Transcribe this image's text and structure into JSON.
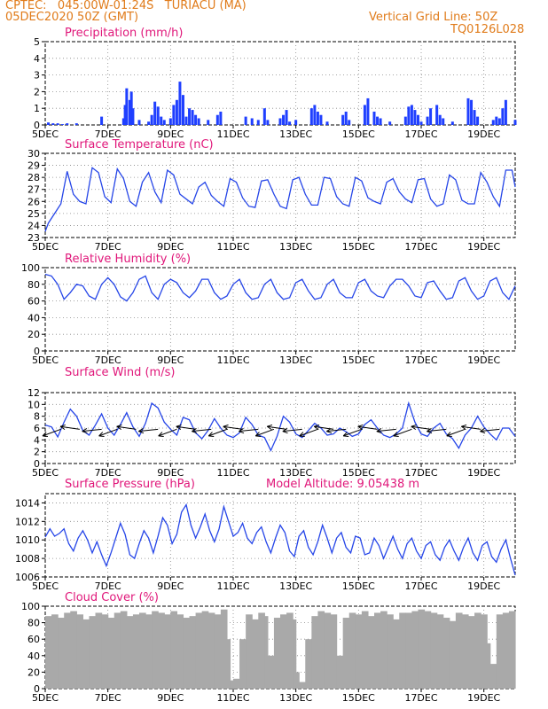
{
  "header": {
    "line1": "CPTEC:   045:00W-01:24S   TURIACU (MA)",
    "line2": "05DEC2020 50Z (GMT)",
    "grid_note": "Vertical Grid Line: 50Z",
    "run_id": "TQ0126L028"
  },
  "x_ticks": [
    {
      "day": 0,
      "label": "5DEC"
    },
    {
      "day": 2,
      "label": "7DEC"
    },
    {
      "day": 4,
      "label": "9DEC"
    },
    {
      "day": 6,
      "label": "11DEC"
    },
    {
      "day": 8,
      "label": "13DEC"
    },
    {
      "day": 10,
      "label": "15DEC"
    },
    {
      "day": 12,
      "label": "17DEC"
    },
    {
      "day": 14,
      "label": "19DEC"
    }
  ],
  "x_range": [
    0,
    15
  ],
  "chart_data": [
    {
      "type": "bar",
      "title": "Precipitation (mm/h)",
      "ylim": [
        0,
        5
      ],
      "yticks": [
        0,
        1,
        2,
        3,
        4,
        5
      ],
      "color": "#1f3fff",
      "x": [
        0.1,
        0.25,
        0.4,
        0.55,
        0.7,
        1.0,
        1.8,
        2.5,
        2.55,
        2.6,
        2.7,
        2.75,
        2.8,
        3.0,
        3.3,
        3.4,
        3.5,
        3.6,
        3.7,
        3.8,
        4.0,
        4.1,
        4.2,
        4.3,
        4.4,
        4.5,
        4.6,
        4.7,
        4.8,
        4.9,
        5.2,
        5.5,
        5.6,
        6.4,
        6.6,
        6.8,
        7.0,
        7.1,
        7.5,
        7.6,
        7.7,
        7.8,
        8.0,
        8.5,
        8.6,
        8.7,
        8.8,
        9.0,
        9.5,
        9.6,
        9.7,
        10.2,
        10.3,
        10.5,
        10.6,
        10.7,
        11.0,
        11.5,
        11.6,
        11.7,
        11.8,
        11.9,
        12.0,
        12.2,
        12.3,
        12.5,
        12.6,
        12.7,
        13.0,
        13.5,
        13.6,
        13.7,
        13.8,
        14.3,
        14.4,
        14.5,
        14.6,
        14.7,
        15.0
      ],
      "values": [
        0.15,
        0.1,
        0.1,
        0.05,
        0.1,
        0.1,
        0.5,
        0.4,
        1.2,
        2.2,
        1.5,
        2.0,
        1.0,
        0.3,
        0.2,
        0.6,
        1.4,
        1.1,
        0.5,
        0.3,
        0.4,
        1.2,
        1.5,
        2.6,
        1.8,
        0.5,
        1.0,
        0.9,
        0.6,
        0.4,
        0.3,
        0.6,
        0.8,
        0.5,
        0.4,
        0.3,
        1.0,
        0.3,
        0.4,
        0.6,
        0.9,
        0.2,
        0.3,
        1.0,
        1.2,
        0.8,
        0.6,
        0.2,
        0.6,
        0.8,
        0.3,
        1.2,
        1.6,
        0.8,
        0.5,
        0.4,
        0.2,
        0.5,
        1.1,
        1.2,
        0.9,
        0.6,
        0.2,
        0.5,
        1.0,
        1.2,
        0.6,
        0.4,
        0.2,
        1.6,
        1.5,
        0.9,
        0.5,
        0.3,
        0.5,
        0.4,
        1.0,
        1.5,
        0.3
      ]
    },
    {
      "type": "line",
      "title": "Surface Temperature (nC)",
      "ylim": [
        23,
        30
      ],
      "yticks": [
        23,
        24,
        25,
        26,
        27,
        28,
        29,
        30
      ],
      "color": "#2646e8",
      "x": [
        0,
        0.1,
        0.3,
        0.5,
        0.7,
        0.9,
        1.1,
        1.3,
        1.5,
        1.7,
        1.9,
        2.1,
        2.3,
        2.5,
        2.7,
        2.9,
        3.1,
        3.3,
        3.5,
        3.7,
        3.9,
        4.1,
        4.3,
        4.5,
        4.7,
        4.9,
        5.1,
        5.3,
        5.5,
        5.7,
        5.9,
        6.1,
        6.3,
        6.5,
        6.7,
        6.9,
        7.1,
        7.3,
        7.5,
        7.7,
        7.9,
        8.1,
        8.3,
        8.5,
        8.7,
        8.9,
        9.1,
        9.3,
        9.5,
        9.7,
        9.9,
        10.1,
        10.3,
        10.5,
        10.7,
        10.9,
        11.1,
        11.3,
        11.5,
        11.7,
        11.9,
        12.1,
        12.3,
        12.5,
        12.7,
        12.9,
        13.1,
        13.3,
        13.5,
        13.7,
        13.9,
        14.1,
        14.3,
        14.5,
        14.7,
        14.9,
        15.0
      ],
      "values": [
        23.5,
        24.2,
        25.0,
        25.8,
        28.5,
        26.6,
        26.0,
        25.8,
        28.8,
        28.4,
        26.4,
        25.9,
        28.7,
        27.9,
        26.0,
        25.6,
        27.6,
        28.4,
        26.8,
        25.9,
        28.6,
        28.2,
        26.6,
        26.2,
        25.8,
        27.2,
        27.6,
        26.5,
        26.0,
        25.6,
        27.9,
        27.6,
        26.3,
        25.6,
        25.5,
        27.7,
        27.8,
        26.6,
        25.6,
        25.4,
        27.8,
        28.0,
        26.6,
        25.7,
        25.7,
        28.0,
        27.9,
        26.4,
        25.8,
        25.6,
        28.0,
        27.7,
        26.3,
        26.0,
        25.8,
        27.6,
        27.9,
        26.8,
        26.2,
        25.9,
        27.8,
        27.9,
        26.2,
        25.6,
        25.8,
        28.2,
        27.8,
        26.1,
        25.8,
        25.8,
        28.4,
        27.6,
        26.4,
        25.6,
        28.6,
        28.6,
        27.2
      ]
    },
    {
      "type": "line",
      "title": "Relative Humidity (%)",
      "ylim": [
        0,
        100
      ],
      "yticks": [
        0,
        20,
        40,
        60,
        80,
        100
      ],
      "color": "#2646e8",
      "x": [
        0,
        0.2,
        0.4,
        0.6,
        0.8,
        1.0,
        1.2,
        1.4,
        1.6,
        1.8,
        2.0,
        2.2,
        2.4,
        2.6,
        2.8,
        3.0,
        3.2,
        3.4,
        3.6,
        3.8,
        4.0,
        4.2,
        4.4,
        4.6,
        4.8,
        5.0,
        5.2,
        5.4,
        5.6,
        5.8,
        6.0,
        6.2,
        6.4,
        6.6,
        6.8,
        7.0,
        7.2,
        7.4,
        7.6,
        7.8,
        8.0,
        8.2,
        8.4,
        8.6,
        8.8,
        9.0,
        9.2,
        9.4,
        9.6,
        9.8,
        10.0,
        10.2,
        10.4,
        10.6,
        10.8,
        11.0,
        11.2,
        11.4,
        11.6,
        11.8,
        12.0,
        12.2,
        12.4,
        12.6,
        12.8,
        13.0,
        13.2,
        13.4,
        13.6,
        13.8,
        14.0,
        14.2,
        14.4,
        14.6,
        14.8,
        15.0
      ],
      "values": [
        92,
        90,
        80,
        62,
        70,
        80,
        78,
        66,
        62,
        80,
        88,
        80,
        65,
        60,
        70,
        86,
        90,
        70,
        62,
        80,
        86,
        82,
        70,
        64,
        72,
        86,
        86,
        70,
        62,
        66,
        80,
        86,
        70,
        62,
        64,
        80,
        86,
        70,
        62,
        64,
        82,
        86,
        72,
        62,
        64,
        80,
        86,
        70,
        64,
        64,
        82,
        86,
        72,
        66,
        64,
        78,
        86,
        86,
        78,
        66,
        64,
        82,
        84,
        72,
        62,
        64,
        84,
        88,
        72,
        62,
        66,
        84,
        88,
        70,
        62,
        78
      ]
    },
    {
      "type": "line",
      "title": "Surface Wind (m/s)",
      "ylim": [
        0,
        12
      ],
      "yticks": [
        0,
        2,
        4,
        6,
        8,
        10,
        12
      ],
      "color": "#2646e8",
      "x": [
        0,
        0.2,
        0.4,
        0.6,
        0.8,
        1.0,
        1.2,
        1.4,
        1.6,
        1.8,
        2.0,
        2.2,
        2.4,
        2.6,
        2.8,
        3.0,
        3.2,
        3.4,
        3.6,
        3.8,
        4.0,
        4.2,
        4.4,
        4.6,
        4.8,
        5.0,
        5.2,
        5.4,
        5.6,
        5.8,
        6.0,
        6.2,
        6.4,
        6.6,
        6.8,
        7.0,
        7.2,
        7.4,
        7.6,
        7.8,
        8.0,
        8.2,
        8.4,
        8.6,
        8.8,
        9.0,
        9.2,
        9.4,
        9.6,
        9.8,
        10.0,
        10.2,
        10.4,
        10.6,
        10.8,
        11.0,
        11.2,
        11.4,
        11.6,
        11.8,
        12.0,
        12.2,
        12.4,
        12.6,
        12.8,
        13.0,
        13.2,
        13.4,
        13.6,
        13.8,
        14.0,
        14.2,
        14.4,
        14.6,
        14.8,
        15.0
      ],
      "values": [
        6.5,
        6.2,
        4.5,
        7.0,
        9.2,
        8.0,
        5.6,
        4.8,
        6.5,
        8.4,
        6.0,
        4.8,
        6.6,
        8.6,
        6.2,
        4.6,
        6.8,
        10.2,
        9.4,
        7.0,
        5.8,
        4.8,
        7.8,
        7.4,
        5.2,
        4.2,
        5.6,
        7.6,
        6.0,
        4.8,
        4.4,
        5.2,
        7.8,
        6.6,
        4.8,
        4.4,
        2.2,
        4.6,
        8.0,
        7.0,
        5.0,
        4.4,
        5.6,
        6.8,
        6.0,
        4.8,
        5.0,
        6.0,
        5.4,
        4.6,
        5.0,
        6.6,
        7.4,
        6.0,
        4.8,
        4.4,
        5.0,
        6.0,
        10.2,
        7.0,
        5.0,
        4.6,
        6.0,
        6.8,
        5.0,
        4.2,
        2.6,
        4.8,
        6.0,
        8.0,
        6.2,
        5.0,
        4.0,
        6.0,
        6.0,
        4.6
      ]
    },
    {
      "type": "line",
      "title": "Surface Pressure (hPa)",
      "annotation": "Model Altitude: 9.05438 m",
      "ylim": [
        1006,
        1015
      ],
      "yticks": [
        1006,
        1008,
        1010,
        1012,
        1014
      ],
      "color": "#2646e8",
      "x": [
        0,
        0.15,
        0.3,
        0.45,
        0.6,
        0.75,
        0.9,
        1.05,
        1.2,
        1.35,
        1.5,
        1.65,
        1.8,
        1.95,
        2.1,
        2.25,
        2.4,
        2.55,
        2.7,
        2.85,
        3.0,
        3.15,
        3.3,
        3.45,
        3.6,
        3.75,
        3.9,
        4.05,
        4.2,
        4.35,
        4.5,
        4.65,
        4.8,
        4.95,
        5.1,
        5.25,
        5.4,
        5.55,
        5.7,
        5.85,
        6.0,
        6.15,
        6.3,
        6.45,
        6.6,
        6.75,
        6.9,
        7.05,
        7.2,
        7.35,
        7.5,
        7.65,
        7.8,
        7.95,
        8.1,
        8.25,
        8.4,
        8.55,
        8.7,
        8.85,
        9.0,
        9.15,
        9.3,
        9.45,
        9.6,
        9.75,
        9.9,
        10.05,
        10.2,
        10.35,
        10.5,
        10.65,
        10.8,
        10.95,
        11.1,
        11.25,
        11.4,
        11.55,
        11.7,
        11.85,
        12.0,
        12.15,
        12.3,
        12.45,
        12.6,
        12.75,
        12.9,
        13.05,
        13.2,
        13.35,
        13.5,
        13.65,
        13.8,
        13.95,
        14.1,
        14.25,
        14.4,
        14.55,
        14.7,
        14.85,
        15.0
      ],
      "values": [
        1010.3,
        1011.2,
        1010.4,
        1010.7,
        1011.2,
        1009.6,
        1008.8,
        1010.2,
        1011.0,
        1010.0,
        1008.6,
        1009.8,
        1008.4,
        1007.2,
        1008.6,
        1010.2,
        1011.8,
        1010.6,
        1008.4,
        1008.0,
        1009.6,
        1011.0,
        1010.2,
        1008.6,
        1010.4,
        1012.4,
        1011.6,
        1009.6,
        1010.6,
        1013.0,
        1013.8,
        1011.6,
        1010.2,
        1011.4,
        1012.8,
        1011.0,
        1009.8,
        1011.2,
        1013.6,
        1012.0,
        1010.4,
        1010.8,
        1011.8,
        1010.2,
        1009.6,
        1010.8,
        1011.4,
        1009.8,
        1008.6,
        1010.2,
        1011.6,
        1010.8,
        1008.8,
        1008.2,
        1010.4,
        1011.0,
        1009.2,
        1008.4,
        1009.8,
        1011.6,
        1010.2,
        1008.6,
        1010.2,
        1010.8,
        1009.2,
        1008.6,
        1010.4,
        1010.2,
        1008.4,
        1008.6,
        1010.2,
        1009.4,
        1008.0,
        1009.2,
        1010.4,
        1009.0,
        1008.0,
        1009.6,
        1010.2,
        1008.8,
        1008.0,
        1009.4,
        1009.8,
        1008.4,
        1007.8,
        1009.2,
        1010.0,
        1008.8,
        1007.8,
        1009.2,
        1010.2,
        1008.6,
        1007.8,
        1009.4,
        1009.8,
        1008.2,
        1007.6,
        1009.0,
        1010.0,
        1008.0,
        1006.2
      ]
    },
    {
      "type": "bar",
      "title": "Cloud Cover (%)",
      "ylim": [
        0,
        100
      ],
      "yticks": [
        0,
        20,
        40,
        60,
        80,
        100
      ],
      "color": "#a9a9a9",
      "x": [
        0.0,
        0.2,
        0.4,
        0.6,
        0.8,
        1.0,
        1.2,
        1.4,
        1.6,
        1.8,
        2.0,
        2.2,
        2.4,
        2.6,
        2.8,
        3.0,
        3.2,
        3.4,
        3.6,
        3.8,
        4.0,
        4.2,
        4.4,
        4.6,
        4.8,
        5.0,
        5.2,
        5.4,
        5.6,
        5.8,
        5.9,
        6.0,
        6.2,
        6.4,
        6.6,
        6.8,
        7.0,
        7.1,
        7.3,
        7.5,
        7.7,
        7.9,
        8.0,
        8.1,
        8.3,
        8.5,
        8.7,
        8.9,
        9.1,
        9.3,
        9.5,
        9.7,
        9.9,
        10.1,
        10.3,
        10.5,
        10.7,
        10.9,
        11.1,
        11.3,
        11.5,
        11.7,
        11.9,
        12.1,
        12.3,
        12.5,
        12.7,
        12.9,
        13.1,
        13.3,
        13.5,
        13.7,
        13.9,
        14.1,
        14.2,
        14.4,
        14.6,
        14.8
      ],
      "values": [
        88,
        90,
        86,
        92,
        94,
        90,
        84,
        88,
        92,
        90,
        86,
        92,
        94,
        88,
        90,
        92,
        90,
        94,
        92,
        90,
        94,
        90,
        86,
        88,
        92,
        94,
        92,
        90,
        96,
        60,
        10,
        12,
        60,
        90,
        84,
        92,
        88,
        40,
        86,
        90,
        92,
        84,
        20,
        8,
        60,
        88,
        94,
        92,
        90,
        40,
        86,
        92,
        90,
        94,
        88,
        92,
        94,
        90,
        84,
        92,
        92,
        94,
        96,
        94,
        92,
        90,
        86,
        82,
        92,
        90,
        88,
        92,
        90,
        55,
        30,
        90,
        92,
        94
      ]
    }
  ],
  "wind_barbs": {
    "x": [
      0.5,
      1.1,
      1.8,
      2.3,
      2.9,
      3.6,
      4.2,
      4.8,
      5.3,
      5.8,
      6.3,
      6.8,
      7.3,
      7.7,
      8.2,
      8.7,
      9.2,
      9.6,
      10.1,
      10.6,
      11.2,
      11.7,
      12.3,
      12.8,
      13.4,
      13.9,
      14.5
    ]
  }
}
